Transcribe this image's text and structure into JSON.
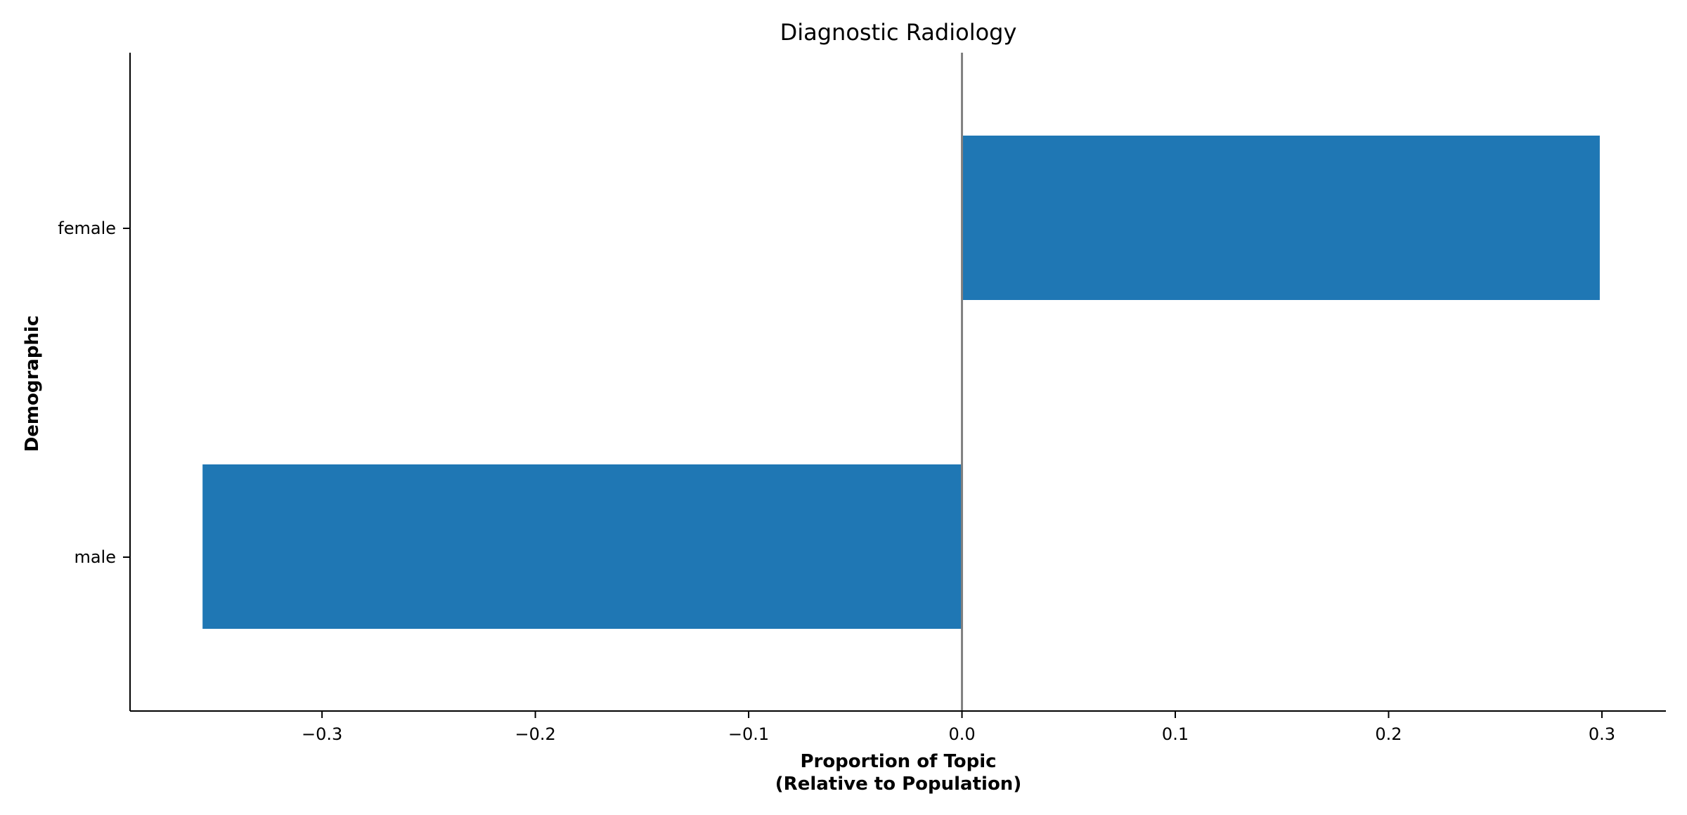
{
  "chart_data": {
    "type": "bar",
    "orientation": "horizontal",
    "title": "Diagnostic Radiology",
    "xlabel": [
      "Proportion of Topic",
      "(Relative to Population)"
    ],
    "ylabel": "Demographic",
    "categories": [
      "female",
      "male"
    ],
    "values": [
      0.299,
      -0.356
    ],
    "xlim": [
      -0.39,
      0.33
    ],
    "xticks": [
      -0.3,
      -0.2,
      -0.1,
      0.0,
      0.1,
      0.2,
      0.3
    ],
    "xtick_labels": [
      "−0.3",
      "−0.2",
      "−0.1",
      "0.0",
      "0.1",
      "0.2",
      "0.3"
    ],
    "bar_color": "#1f77b4",
    "zero_line_color": "#808080",
    "grid": false,
    "legend": "none"
  }
}
